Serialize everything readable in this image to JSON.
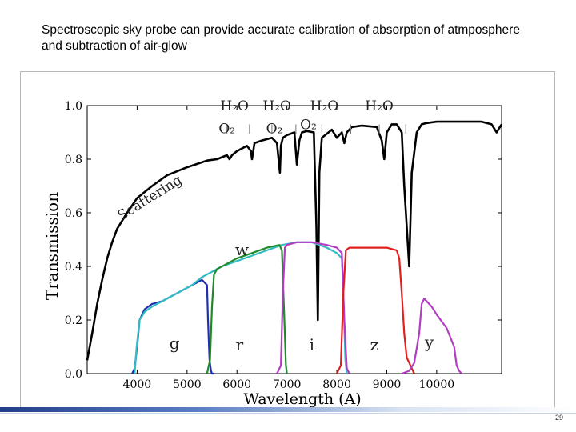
{
  "slide": {
    "title": "Spectroscopic sky probe can provide accurate calibration of absorption of atmposphere and subtraction of air-glow",
    "page_number": "29"
  },
  "colors": {
    "atmosphere": "#000000",
    "g": "#1f2fb0",
    "w": "#33bcc4",
    "r": "#1f8a2a",
    "i": "#b43cc4",
    "z": "#e02020",
    "y": "#b43cc4"
  },
  "chart_data": {
    "type": "line",
    "title": "",
    "xlabel": "Wavelength (A)",
    "ylabel": "Transmission",
    "xlim": [
      3000,
      11300
    ],
    "ylim": [
      0.0,
      1.0
    ],
    "xticks": [
      4000,
      5000,
      6000,
      7000,
      8000,
      9000,
      10000
    ],
    "yticks": [
      0.0,
      0.2,
      0.4,
      0.6,
      0.8,
      1.0
    ],
    "yticklabels": [
      "0.0",
      "0.2",
      "0.4",
      "0.6",
      "0.8",
      "1.0"
    ],
    "annotations": [
      {
        "text": "Scattering",
        "x": 4300,
        "y": 0.66
      },
      {
        "text": "H₂O",
        "x": 5950,
        "y": 1.0
      },
      {
        "text": "H₂O",
        "x": 6800,
        "y": 1.0
      },
      {
        "text": "H₂O",
        "x": 7750,
        "y": 1.0
      },
      {
        "text": "H₂O",
        "x": 8850,
        "y": 1.0
      },
      {
        "text": "O₂",
        "x": 5800,
        "y": 0.915
      },
      {
        "text": "O₂",
        "x": 6750,
        "y": 0.915
      },
      {
        "text": "O₂",
        "x": 7430,
        "y": 0.93
      },
      {
        "text": "w",
        "x": 6100,
        "y": 0.46
      },
      {
        "text": "g",
        "x": 4750,
        "y": 0.11
      },
      {
        "text": "r",
        "x": 6050,
        "y": 0.105
      },
      {
        "text": "i",
        "x": 7500,
        "y": 0.105
      },
      {
        "text": "z",
        "x": 8750,
        "y": 0.105
      },
      {
        "text": "y",
        "x": 9850,
        "y": 0.115
      }
    ],
    "series": [
      {
        "name": "atmosphere",
        "color_key": "atmosphere",
        "x": [
          3000,
          3100,
          3200,
          3300,
          3400,
          3500,
          3600,
          3800,
          4000,
          4300,
          4600,
          5000,
          5400,
          5600,
          5800,
          5850,
          5900,
          6000,
          6200,
          6280,
          6300,
          6350,
          6500,
          6700,
          6800,
          6860,
          6880,
          6920,
          7000,
          7150,
          7200,
          7250,
          7300,
          7400,
          7540,
          7590,
          7620,
          7650,
          7700,
          7900,
          8000,
          8100,
          8150,
          8200,
          8300,
          8500,
          8800,
          8900,
          8950,
          9000,
          9100,
          9200,
          9300,
          9350,
          9400,
          9450,
          9500,
          9600,
          9700,
          9800,
          10000,
          10300,
          10600,
          10900,
          11100,
          11200,
          11300
        ],
        "y": [
          0.05,
          0.15,
          0.26,
          0.35,
          0.43,
          0.49,
          0.54,
          0.6,
          0.655,
          0.7,
          0.74,
          0.77,
          0.795,
          0.8,
          0.815,
          0.8,
          0.815,
          0.83,
          0.85,
          0.83,
          0.8,
          0.86,
          0.87,
          0.88,
          0.86,
          0.75,
          0.85,
          0.88,
          0.89,
          0.9,
          0.78,
          0.87,
          0.9,
          0.905,
          0.9,
          0.55,
          0.2,
          0.75,
          0.88,
          0.91,
          0.88,
          0.9,
          0.86,
          0.9,
          0.92,
          0.925,
          0.92,
          0.87,
          0.8,
          0.9,
          0.93,
          0.93,
          0.9,
          0.7,
          0.55,
          0.4,
          0.75,
          0.9,
          0.93,
          0.935,
          0.94,
          0.94,
          0.94,
          0.94,
          0.93,
          0.9,
          0.93
        ]
      },
      {
        "name": "g",
        "color_key": "g",
        "x": [
          3900,
          3950,
          4000,
          4050,
          4150,
          4300,
          4500,
          4700,
          4900,
          5100,
          5300,
          5400,
          5420,
          5450,
          5480,
          5500,
          5550
        ],
        "y": [
          0.0,
          0.02,
          0.1,
          0.2,
          0.24,
          0.26,
          0.27,
          0.29,
          0.31,
          0.33,
          0.35,
          0.33,
          0.2,
          0.05,
          0.01,
          0.0,
          0.0
        ]
      },
      {
        "name": "w",
        "color_key": "w",
        "x": [
          3950,
          3990,
          4050,
          4150,
          4300,
          4500,
          4800,
          5100,
          5300,
          5500,
          5700,
          6000,
          6300,
          6600,
          6900,
          7200,
          7500,
          7800,
          8000,
          8100,
          8130,
          8170,
          8200
        ],
        "y": [
          0.0,
          0.1,
          0.2,
          0.23,
          0.25,
          0.27,
          0.3,
          0.33,
          0.36,
          0.38,
          0.4,
          0.42,
          0.44,
          0.46,
          0.48,
          0.49,
          0.49,
          0.47,
          0.45,
          0.43,
          0.3,
          0.05,
          0.0
        ]
      },
      {
        "name": "r",
        "color_key": "r",
        "x": [
          5400,
          5460,
          5500,
          5540,
          5600,
          5800,
          6000,
          6300,
          6600,
          6850,
          6900,
          6940,
          6980,
          7000
        ],
        "y": [
          0.0,
          0.05,
          0.25,
          0.37,
          0.39,
          0.41,
          0.43,
          0.45,
          0.47,
          0.48,
          0.46,
          0.25,
          0.03,
          0.0
        ]
      },
      {
        "name": "i",
        "color_key": "i",
        "x": [
          6800,
          6880,
          6920,
          6960,
          7000,
          7200,
          7500,
          7800,
          8000,
          8100,
          8150,
          8200,
          8250
        ],
        "y": [
          0.0,
          0.03,
          0.3,
          0.47,
          0.48,
          0.49,
          0.49,
          0.48,
          0.47,
          0.45,
          0.2,
          0.02,
          0.0
        ]
      },
      {
        "name": "z",
        "color_key": "z",
        "x": [
          8000,
          8080,
          8130,
          8180,
          8250,
          8400,
          8700,
          9000,
          9200,
          9250,
          9300,
          9350,
          9400,
          9500,
          9550
        ],
        "y": [
          0.0,
          0.03,
          0.3,
          0.46,
          0.47,
          0.47,
          0.47,
          0.47,
          0.46,
          0.43,
          0.3,
          0.15,
          0.06,
          0.02,
          0.0
        ]
      },
      {
        "name": "y",
        "color_key": "y",
        "x": [
          9300,
          9450,
          9550,
          9650,
          9700,
          9750,
          9800,
          9900,
          10000,
          10200,
          10350,
          10400,
          10450,
          10500
        ],
        "y": [
          0.0,
          0.01,
          0.04,
          0.15,
          0.26,
          0.28,
          0.27,
          0.25,
          0.22,
          0.17,
          0.1,
          0.03,
          0.01,
          0.0
        ]
      }
    ]
  }
}
